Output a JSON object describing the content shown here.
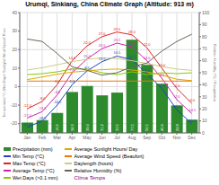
{
  "chart_data": {
    "type": "bar",
    "title": "Urumqi, Sinkiang, China Climate Graph (Altitude: 913 m)",
    "categories": [
      "Jan",
      "Feb",
      "Mar",
      "Apr",
      "May",
      "Jun",
      "Jul",
      "Aug",
      "Sep",
      "Oct",
      "Nov",
      "Dec"
    ],
    "ylabel": "Temperature/°C (Wet Days/ Sunlight/ Wind Speed/ Preci",
    "y2label": "Relative Humidity (%) / Precipitation",
    "ylim": [
      -25,
      40
    ],
    "yticks": [
      -20,
      -10,
      0,
      10,
      20,
      30,
      40
    ],
    "y2lim": [
      0,
      100
    ],
    "y2ticks": [
      0,
      10,
      20,
      30,
      40,
      50,
      60,
      70,
      80,
      90,
      100
    ],
    "grid": true,
    "legend": "lower left",
    "series": [
      {
        "name": "Precipitation (mm)",
        "type": "bar",
        "axis": "y2",
        "color": "#2d8a2d",
        "values": [
          8.6,
          10.6,
          16.6,
          34.0,
          39.0,
          31.2,
          33.5,
          77.5,
          56.5,
          40.9,
          22.8,
          11.0
        ],
        "data_labels": true,
        "value_labels": [
          null,
          null,
          "16.6",
          "34.0",
          "39.0",
          "31.2",
          "33.5",
          "77.5",
          "56.5",
          "40.9",
          "22.8",
          null
        ]
      },
      {
        "name": "Min Temp (°C)",
        "type": "line",
        "color": "#2244bb",
        "values": [
          -22.0,
          -18.5,
          -10.0,
          1.0,
          8.5,
          13.5,
          16.5,
          14.5,
          7.0,
          -1.0,
          -12.5,
          -20.0
        ],
        "data_labels": true,
        "value_labels": [
          "-22.0",
          "-18.5",
          "-10.0",
          "1.0",
          "8.5",
          "13.5",
          "16.5",
          "14.5",
          "7.0",
          "-1.0",
          "-12.5",
          "-20.0"
        ]
      },
      {
        "name": "Max Temp (°C)",
        "type": "line",
        "color": "#dd2222",
        "values": [
          -12.0,
          -8.0,
          1.0,
          14.0,
          22.0,
          27.0,
          29.5,
          28.0,
          21.0,
          10.0,
          -1.0,
          -9.0
        ],
        "data_labels": true,
        "value_labels": [
          "-12.0",
          "-8.0",
          "1.0",
          "14.0",
          "22.0",
          "27.0",
          "29.5",
          "28.0",
          "21.0",
          "10.0",
          "-1.0",
          "-9.0"
        ]
      },
      {
        "name": "Average Temp (°C)",
        "type": "line",
        "color": "#cc22aa",
        "values": [
          -17.0,
          -13.5,
          -4.5,
          7.5,
          15.0,
          20.5,
          23.5,
          21.5,
          14.0,
          4.5,
          -7.0,
          -14.5
        ],
        "data_labels": true,
        "value_labels": [
          "-17.0",
          "-13.5",
          "-4.5",
          "7.5",
          "15.0",
          "20.5",
          "23.5",
          "21.5",
          "14.0",
          "4.5",
          "-7.0",
          "-14.5"
        ]
      },
      {
        "name": "Wet Days (>0.1 mm)",
        "type": "line",
        "color": "#88cc00",
        "values": [
          6.5,
          7.0,
          8.0,
          9.5,
          9.5,
          7.5,
          6.5,
          8.0,
          6.5,
          7.5,
          7.0,
          7.5
        ]
      },
      {
        "name": "Average Sunlight Hours/ Day",
        "type": "line",
        "color": "#ddaa00",
        "values": [
          3.8,
          5.2,
          6.7,
          7.8,
          8.5,
          9.2,
          9.5,
          9.0,
          8.0,
          6.2,
          4.0,
          3.2
        ]
      },
      {
        "name": "Average Wind Speed (Beaufort)",
        "type": "line",
        "color": "#ee7700",
        "values": [
          3.0,
          3.0,
          3.0,
          3.0,
          3.0,
          3.0,
          3.0,
          3.0,
          3.0,
          3.0,
          3.0,
          3.0
        ]
      },
      {
        "name": "Daylength (hours)",
        "type": "line",
        "color": "#cccc88",
        "values": [
          9.0,
          10.2,
          11.8,
          13.5,
          14.8,
          15.5,
          15.2,
          14.0,
          12.5,
          10.8,
          9.5,
          8.8
        ]
      },
      {
        "name": "Relative Humidity (%)",
        "type": "line",
        "axis": "y2",
        "color": "#666655",
        "values": [
          78,
          76,
          66,
          55,
          52,
          48,
          50,
          55,
          58,
          68,
          76,
          82
        ]
      }
    ],
    "annotations": [
      {
        "text": "Clima Temps",
        "color": "purple"
      }
    ]
  }
}
